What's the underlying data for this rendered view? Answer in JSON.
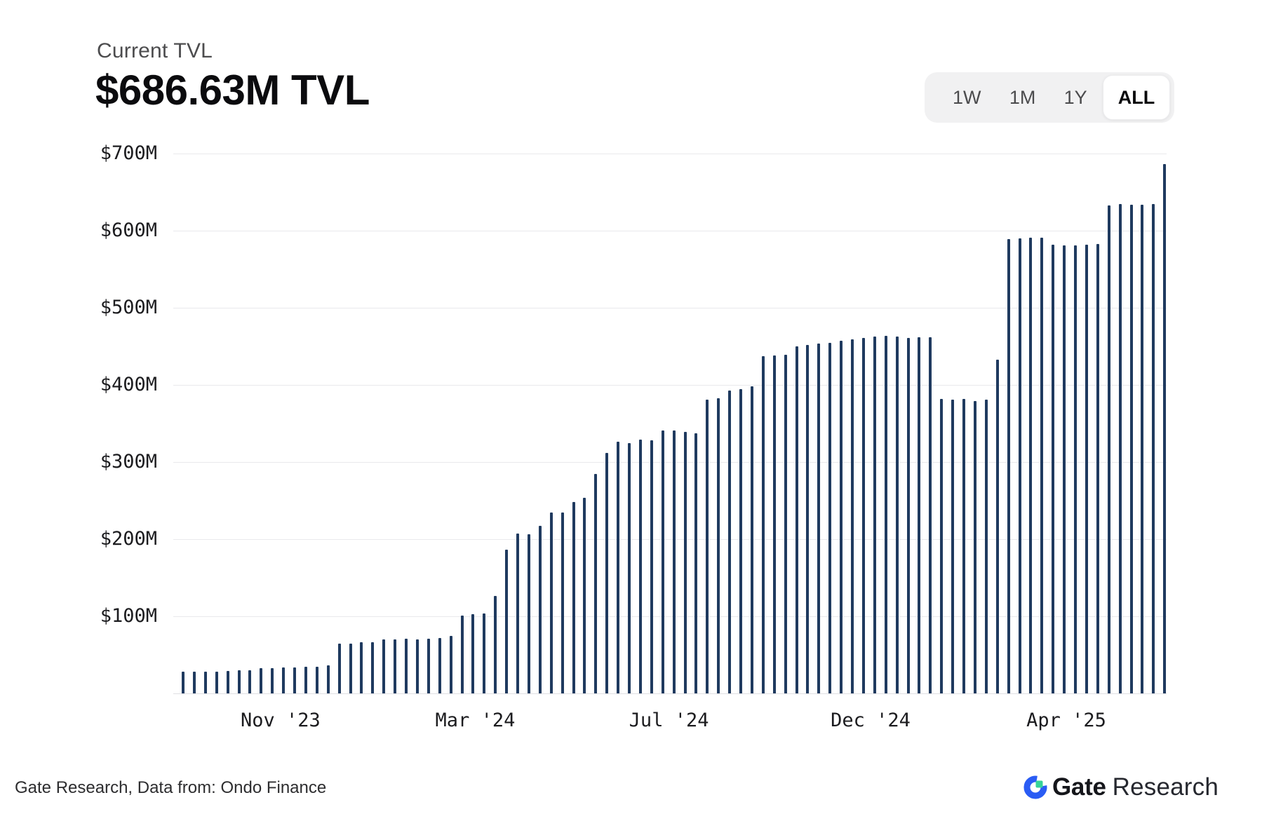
{
  "header": {
    "subtitle": "Current TVL",
    "title": "$686.63M TVL"
  },
  "range_selector": {
    "options": [
      "1W",
      "1M",
      "1Y",
      "ALL"
    ],
    "selected": "ALL"
  },
  "chart_data": {
    "type": "bar",
    "title": "Current TVL history",
    "unit": "USD millions",
    "ylim": [
      0,
      700
    ],
    "grid": true,
    "bar_color": "#1f3a5f",
    "y_ticks": [
      {
        "label": "$700M",
        "value": 700
      },
      {
        "label": "$600M",
        "value": 600
      },
      {
        "label": "$500M",
        "value": 500
      },
      {
        "label": "$400M",
        "value": 400
      },
      {
        "label": "$300M",
        "value": 300
      },
      {
        "label": "$200M",
        "value": 200
      },
      {
        "label": "$100M",
        "value": 100
      }
    ],
    "x_ticks": [
      {
        "label": "Nov '23",
        "pos": 0.108
      },
      {
        "label": "Mar '24",
        "pos": 0.304
      },
      {
        "label": "Jul '24",
        "pos": 0.499
      },
      {
        "label": "Dec '24",
        "pos": 0.702
      },
      {
        "label": "Apr '25",
        "pos": 0.899
      }
    ],
    "values": [
      28,
      28,
      28,
      28,
      29,
      30,
      30,
      33,
      33,
      34,
      34,
      35,
      35,
      36,
      65,
      65,
      66,
      66,
      70,
      70,
      71,
      70,
      71,
      72,
      75,
      101,
      103,
      104,
      126,
      186,
      207,
      206,
      217,
      235,
      235,
      248,
      254,
      285,
      312,
      326,
      325,
      329,
      328,
      341,
      341,
      339,
      337,
      381,
      383,
      393,
      395,
      398,
      437,
      438,
      439,
      450,
      452,
      454,
      455,
      457,
      459,
      461,
      463,
      464,
      463,
      461,
      462,
      462,
      382,
      381,
      382,
      379,
      381,
      433,
      589,
      590,
      591,
      591,
      582,
      581,
      581,
      582,
      583,
      633,
      635,
      634,
      634,
      635,
      686.63
    ]
  },
  "footer": {
    "attribution": "Gate Research, Data from: Ondo Finance",
    "logo": {
      "brand": "Gate",
      "suffix": "Research"
    }
  },
  "colors": {
    "bar": "#1f3a5f",
    "grid": "#e9e9ec",
    "selector_bg": "#f1f1f2",
    "logo_blue": "#2a5cf4",
    "logo_green": "#36d399"
  }
}
